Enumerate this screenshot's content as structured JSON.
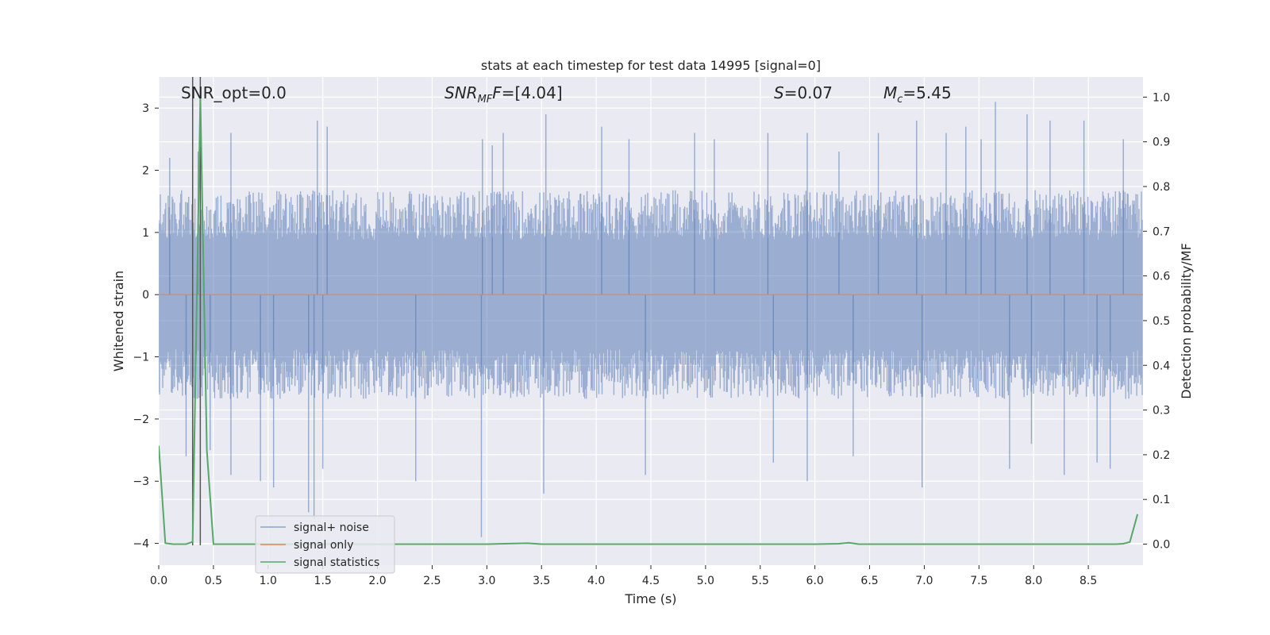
{
  "chart_data": {
    "type": "line",
    "title": "stats at each timestep for test data 14995 [signal=0]",
    "xlabel": "Time (s)",
    "ylabel": "Whitened strain",
    "y2label": "Detection probability/MF",
    "xlim": [
      0.0,
      9.0
    ],
    "ylim": [
      -4.35,
      3.5
    ],
    "y2lim": [
      -0.047,
      1.045
    ],
    "xticks": [
      0.0,
      0.5,
      1.0,
      1.5,
      2.0,
      2.5,
      3.0,
      3.5,
      4.0,
      4.5,
      5.0,
      5.5,
      6.0,
      6.5,
      7.0,
      7.5,
      8.0,
      8.5
    ],
    "xtick_labels": [
      "0.0",
      "0.5",
      "1.0",
      "1.5",
      "2.0",
      "2.5",
      "3.0",
      "3.5",
      "4.0",
      "4.5",
      "5.0",
      "5.5",
      "6.0",
      "6.5",
      "7.0",
      "7.5",
      "8.0",
      "8.5"
    ],
    "yticks": [
      -4,
      -3,
      -2,
      -1,
      0,
      1,
      2,
      3
    ],
    "ytick_labels": [
      "−4",
      "−3",
      "−2",
      "−1",
      "0",
      "1",
      "2",
      "3"
    ],
    "y2ticks": [
      0.0,
      0.1,
      0.2,
      0.3,
      0.4,
      0.5,
      0.6,
      0.7,
      0.8,
      0.9,
      1.0
    ],
    "y2tick_labels": [
      "0.0",
      "0.1",
      "0.2",
      "0.3",
      "0.4",
      "0.5",
      "0.6",
      "0.7",
      "0.8",
      "0.9",
      "1.0"
    ],
    "annotations": {
      "snr_opt": "SNR_opt=0.0",
      "snr_mf": "=[4.04]",
      "s": "=0.07",
      "mc": "=5.45"
    },
    "vlines": [
      0.31,
      0.38
    ],
    "series": [
      {
        "name": "signal+ noise",
        "color": "#4c72b0",
        "axis": "left",
        "kind": "noise",
        "envelope": [
          1.6,
          -1.6
        ],
        "extremes": [
          [
            0.1,
            2.2
          ],
          [
            0.25,
            -2.6
          ],
          [
            0.36,
            2.3
          ],
          [
            0.47,
            -2.5
          ],
          [
            0.66,
            2.6
          ],
          [
            0.66,
            -2.9
          ],
          [
            0.93,
            -3.0
          ],
          [
            1.05,
            -3.1
          ],
          [
            1.37,
            -3.5
          ],
          [
            1.42,
            -3.6
          ],
          [
            1.45,
            2.8
          ],
          [
            1.54,
            2.7
          ],
          [
            1.5,
            -2.8
          ],
          [
            2.35,
            -3.0
          ],
          [
            2.95,
            -3.9
          ],
          [
            2.96,
            2.5
          ],
          [
            3.05,
            2.4
          ],
          [
            3.15,
            2.6
          ],
          [
            3.52,
            -3.2
          ],
          [
            3.54,
            2.9
          ],
          [
            4.05,
            2.7
          ],
          [
            4.3,
            2.5
          ],
          [
            4.45,
            -2.9
          ],
          [
            4.9,
            2.6
          ],
          [
            5.08,
            2.5
          ],
          [
            5.57,
            2.6
          ],
          [
            5.62,
            -2.7
          ],
          [
            5.93,
            -3.0
          ],
          [
            5.93,
            2.6
          ],
          [
            6.22,
            2.3
          ],
          [
            6.35,
            -2.6
          ],
          [
            6.58,
            2.6
          ],
          [
            6.93,
            2.8
          ],
          [
            6.98,
            -3.1
          ],
          [
            7.2,
            2.6
          ],
          [
            7.38,
            2.7
          ],
          [
            7.52,
            2.5
          ],
          [
            7.65,
            3.1
          ],
          [
            7.78,
            -2.8
          ],
          [
            7.94,
            2.9
          ],
          [
            7.98,
            -2.4
          ],
          [
            8.15,
            2.8
          ],
          [
            8.28,
            -2.9
          ],
          [
            8.46,
            2.8
          ],
          [
            8.58,
            -2.7
          ],
          [
            8.7,
            -2.8
          ],
          [
            8.82,
            2.5
          ]
        ]
      },
      {
        "name": "signal only",
        "color": "#dd8452",
        "axis": "left",
        "x": [
          0.0,
          9.0
        ],
        "y": [
          0.0,
          0.0
        ]
      },
      {
        "name": "signal statistics",
        "color": "#55a868",
        "axis": "right",
        "x": [
          0.0,
          0.06,
          0.13,
          0.19,
          0.25,
          0.31,
          0.38,
          0.44,
          0.5,
          0.56,
          1.0,
          2.0,
          3.0,
          3.37,
          3.5,
          4.0,
          5.0,
          6.0,
          6.22,
          6.31,
          6.4,
          7.0,
          8.0,
          8.75,
          8.82,
          8.88,
          8.95
        ],
        "y": [
          0.22,
          0.002,
          0.0,
          0.0,
          0.0,
          0.005,
          1.0,
          0.21,
          0.0,
          0.0,
          0.0,
          0.0,
          0.0,
          0.002,
          0.0,
          0.0,
          0.0,
          0.0,
          0.001,
          0.003,
          0.0,
          0.0,
          0.0,
          0.0,
          0.001,
          0.005,
          0.067
        ]
      }
    ],
    "legend": {
      "position": "lower-left",
      "entries": [
        "signal+ noise",
        "signal only",
        "signal statistics"
      ]
    },
    "grid": true
  }
}
